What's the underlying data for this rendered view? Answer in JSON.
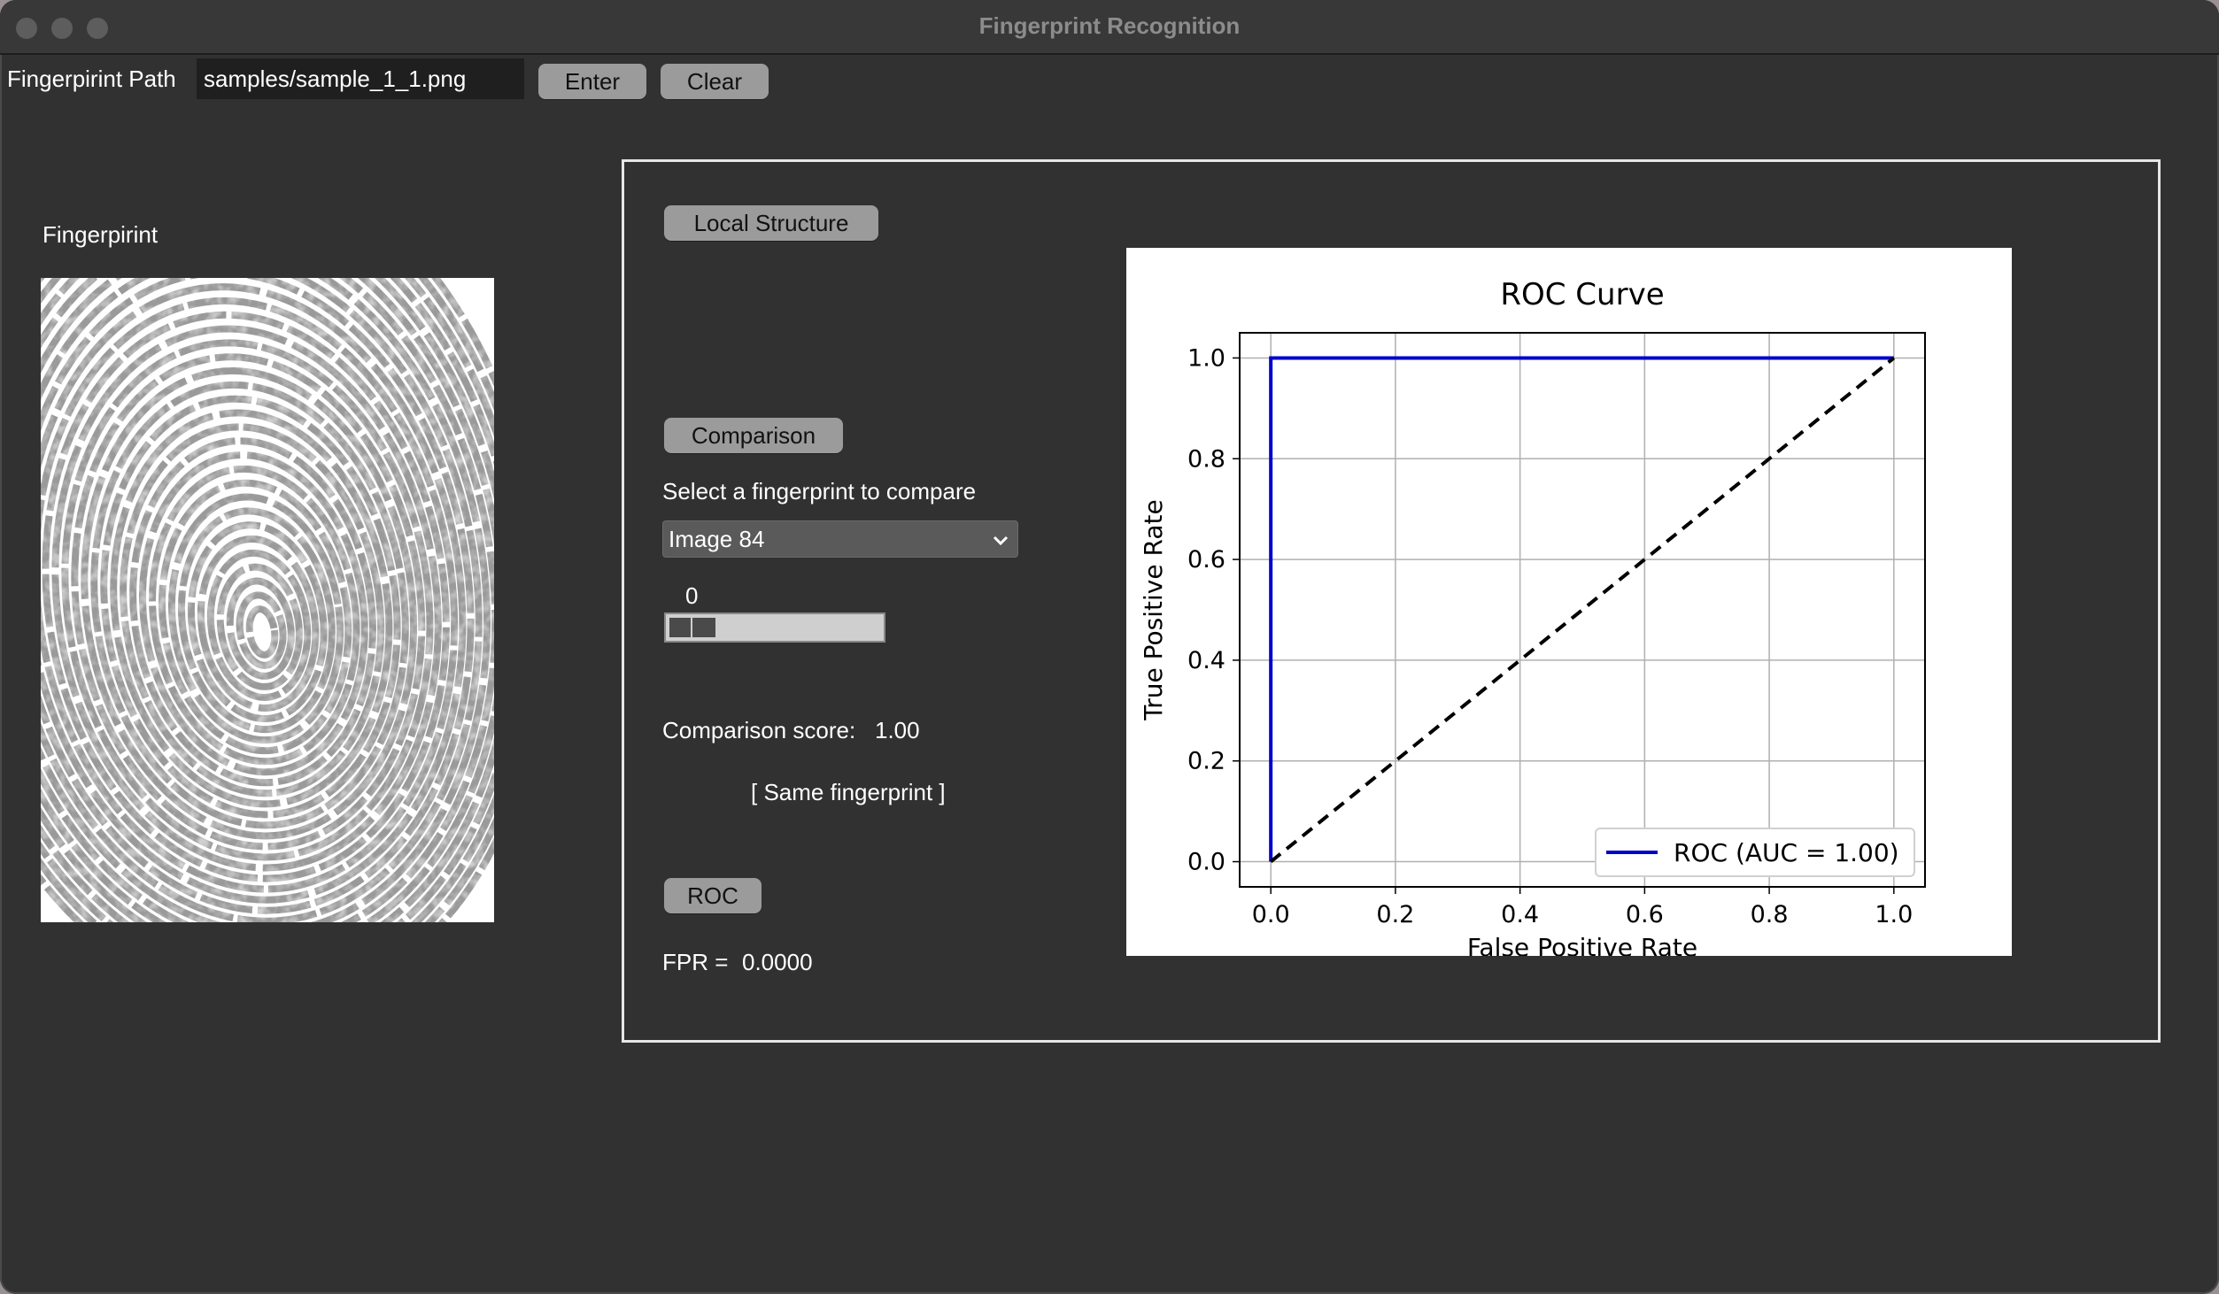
{
  "window": {
    "title": "Fingerprint Recognition"
  },
  "toolbar": {
    "path_label": "Fingerpirint Path",
    "path_value": "samples/sample_1_1.png",
    "enter_label": "Enter",
    "clear_label": "Clear"
  },
  "left": {
    "fingerprint_label": "Fingerpirint"
  },
  "panel": {
    "local_structure_label": "Local Structure",
    "comparison_label": "Comparison",
    "select_prompt": "Select a fingerprint to compare",
    "select_value": "Image 84",
    "slider_value": "0",
    "score_label": "Comparison score:",
    "score_value": "1.00",
    "result_text": "[ Same fingerprint ]",
    "roc_label": "ROC",
    "fpr_label": "FPR =",
    "fpr_value": "0.0000"
  },
  "chart_data": {
    "type": "line",
    "title": "ROC Curve",
    "xlabel": "False Positive Rate",
    "ylabel": "True Positive Rate",
    "xlim": [
      -0.05,
      1.05
    ],
    "ylim": [
      -0.05,
      1.05
    ],
    "xticks": [
      "0.0",
      "0.2",
      "0.4",
      "0.6",
      "0.8",
      "1.0"
    ],
    "yticks": [
      "0.0",
      "0.2",
      "0.4",
      "0.6",
      "0.8",
      "1.0"
    ],
    "grid": true,
    "legend_position": "lower-right",
    "series": [
      {
        "name": "ROC (AUC = 1.00)",
        "color": "#0000cc",
        "style": "solid",
        "x": [
          0.0,
          0.0,
          1.0
        ],
        "y": [
          0.0,
          1.0,
          1.0
        ]
      },
      {
        "color": "#000000",
        "style": "dashed",
        "x": [
          0.0,
          1.0
        ],
        "y": [
          0.0,
          1.0
        ]
      }
    ]
  }
}
